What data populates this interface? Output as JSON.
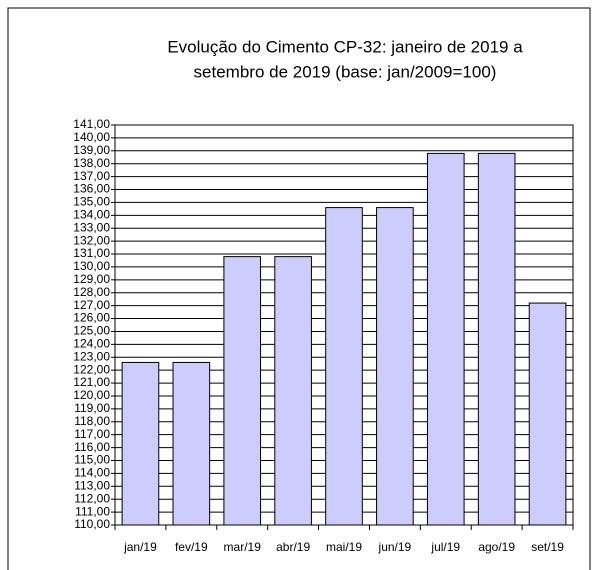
{
  "chart_data": {
    "type": "bar",
    "title": [
      "Evolução do Cimento CP-32: janeiro de 2019 a",
      "setembro de 2019 (base: jan/2009=100)"
    ],
    "categories": [
      "jan/19",
      "fev/19",
      "mar/19",
      "abr/19",
      "mai/19",
      "jun/19",
      "jul/19",
      "ago/19",
      "set/19"
    ],
    "values": [
      122.6,
      122.6,
      130.8,
      130.8,
      134.6,
      134.6,
      138.8,
      138.8,
      127.2
    ],
    "color": "#ccccff",
    "ylim": [
      110,
      141
    ],
    "yticks": [
      {
        "value": 110,
        "label": "110,00"
      },
      {
        "value": 111,
        "label": "111,00"
      },
      {
        "value": 112,
        "label": "112,00"
      },
      {
        "value": 113,
        "label": "113,00"
      },
      {
        "value": 114,
        "label": "114,00"
      },
      {
        "value": 115,
        "label": "115,00"
      },
      {
        "value": 116,
        "label": "116,00"
      },
      {
        "value": 117,
        "label": "117,00"
      },
      {
        "value": 118,
        "label": "118,00"
      },
      {
        "value": 119,
        "label": "119,00"
      },
      {
        "value": 120,
        "label": "120,00"
      },
      {
        "value": 121,
        "label": "121,00"
      },
      {
        "value": 122,
        "label": "122,00"
      },
      {
        "value": 123,
        "label": "123,00"
      },
      {
        "value": 124,
        "label": "124,00"
      },
      {
        "value": 125,
        "label": "125,00"
      },
      {
        "value": 126,
        "label": "126,00"
      },
      {
        "value": 127,
        "label": "127,00"
      },
      {
        "value": 128,
        "label": "128,00"
      },
      {
        "value": 129,
        "label": "129,00"
      },
      {
        "value": 130,
        "label": "130,00"
      },
      {
        "value": 131,
        "label": "131,00"
      },
      {
        "value": 132,
        "label": "132,00"
      },
      {
        "value": 133,
        "label": "133,00"
      },
      {
        "value": 134,
        "label": "134,00"
      },
      {
        "value": 135,
        "label": "135,00"
      },
      {
        "value": 136,
        "label": "136,00"
      },
      {
        "value": 137,
        "label": "137,00"
      },
      {
        "value": 138,
        "label": "138,00"
      },
      {
        "value": 139,
        "label": "139,00"
      },
      {
        "value": 140,
        "label": "140,00"
      },
      {
        "value": 141,
        "label": "141,00"
      }
    ],
    "grid": true
  }
}
